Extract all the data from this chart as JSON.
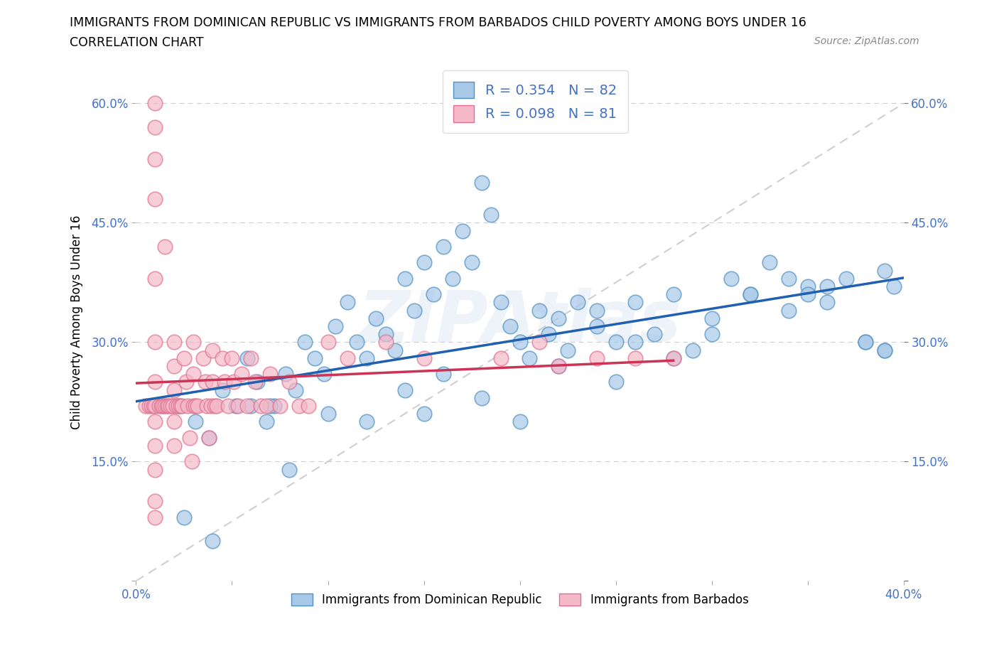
{
  "title_line1": "IMMIGRANTS FROM DOMINICAN REPUBLIC VS IMMIGRANTS FROM BARBADOS CHILD POVERTY AMONG BOYS UNDER 16",
  "title_line2": "CORRELATION CHART",
  "source_text": "Source: ZipAtlas.com",
  "ylabel": "Child Poverty Among Boys Under 16",
  "watermark": "ZIPAtlas",
  "legend_label1": "Immigrants from Dominican Republic",
  "legend_label2": "Immigrants from Barbados",
  "R1": 0.354,
  "N1": 82,
  "R2": 0.098,
  "N2": 81,
  "color1": "#a8c8e8",
  "color2": "#f4b8c8",
  "edge_color1": "#5090c0",
  "edge_color2": "#e07090",
  "line_color1": "#2060b0",
  "line_color2": "#cc3355",
  "diag_color": "#bbbbbb",
  "grid_color": "#cccccc",
  "tick_color": "#4472c4",
  "xlim": [
    0.0,
    0.4
  ],
  "ylim": [
    0.0,
    0.65
  ],
  "xticks": [
    0.0,
    0.05,
    0.1,
    0.15,
    0.2,
    0.25,
    0.3,
    0.35,
    0.4
  ],
  "yticks": [
    0.0,
    0.15,
    0.3,
    0.45,
    0.6
  ],
  "ytick_labels_left": [
    "",
    "15.0%",
    "30.0%",
    "45.0%",
    "60.0%"
  ],
  "ytick_labels_right": [
    "",
    "15.0%",
    "30.0%",
    "45.0%",
    "60.0%"
  ],
  "xtick_labels": [
    "0.0%",
    "",
    "",
    "",
    "",
    "",
    "",
    "",
    "40.0%"
  ],
  "figsize": [
    14.06,
    9.3
  ],
  "dpi": 100,
  "seed": 99,
  "blue_x": [
    0.022,
    0.031,
    0.038,
    0.045,
    0.052,
    0.058,
    0.063,
    0.068,
    0.072,
    0.078,
    0.083,
    0.088,
    0.093,
    0.098,
    0.104,
    0.11,
    0.115,
    0.12,
    0.125,
    0.13,
    0.135,
    0.14,
    0.145,
    0.15,
    0.155,
    0.16,
    0.165,
    0.17,
    0.175,
    0.18,
    0.185,
    0.19,
    0.195,
    0.2,
    0.205,
    0.21,
    0.215,
    0.22,
    0.225,
    0.23,
    0.24,
    0.25,
    0.26,
    0.27,
    0.28,
    0.29,
    0.3,
    0.31,
    0.32,
    0.33,
    0.34,
    0.35,
    0.36,
    0.37,
    0.38,
    0.39,
    0.04,
    0.06,
    0.08,
    0.1,
    0.12,
    0.14,
    0.16,
    0.18,
    0.2,
    0.22,
    0.24,
    0.26,
    0.28,
    0.3,
    0.32,
    0.34,
    0.36,
    0.38,
    0.39,
    0.395,
    0.025,
    0.07,
    0.15,
    0.25,
    0.35,
    0.39
  ],
  "blue_y": [
    0.22,
    0.2,
    0.18,
    0.24,
    0.22,
    0.28,
    0.25,
    0.2,
    0.22,
    0.26,
    0.24,
    0.3,
    0.28,
    0.26,
    0.32,
    0.35,
    0.3,
    0.28,
    0.33,
    0.31,
    0.29,
    0.38,
    0.34,
    0.4,
    0.36,
    0.42,
    0.38,
    0.44,
    0.4,
    0.5,
    0.46,
    0.35,
    0.32,
    0.3,
    0.28,
    0.34,
    0.31,
    0.33,
    0.29,
    0.35,
    0.32,
    0.3,
    0.35,
    0.31,
    0.36,
    0.29,
    0.33,
    0.38,
    0.36,
    0.4,
    0.38,
    0.37,
    0.35,
    0.38,
    0.3,
    0.29,
    0.05,
    0.22,
    0.14,
    0.21,
    0.2,
    0.24,
    0.26,
    0.23,
    0.2,
    0.27,
    0.34,
    0.3,
    0.28,
    0.31,
    0.36,
    0.34,
    0.37,
    0.3,
    0.29,
    0.37,
    0.08,
    0.22,
    0.21,
    0.25,
    0.36,
    0.39
  ],
  "pink_x": [
    0.005,
    0.007,
    0.008,
    0.009,
    0.01,
    0.01,
    0.01,
    0.01,
    0.01,
    0.01,
    0.01,
    0.01,
    0.01,
    0.01,
    0.01,
    0.01,
    0.01,
    0.012,
    0.013,
    0.014,
    0.015,
    0.015,
    0.016,
    0.017,
    0.018,
    0.019,
    0.02,
    0.02,
    0.02,
    0.02,
    0.02,
    0.021,
    0.022,
    0.023,
    0.024,
    0.025,
    0.026,
    0.027,
    0.028,
    0.029,
    0.03,
    0.03,
    0.03,
    0.031,
    0.032,
    0.035,
    0.036,
    0.037,
    0.038,
    0.039,
    0.04,
    0.04,
    0.041,
    0.042,
    0.045,
    0.046,
    0.048,
    0.05,
    0.051,
    0.053,
    0.055,
    0.058,
    0.06,
    0.062,
    0.065,
    0.068,
    0.07,
    0.075,
    0.08,
    0.085,
    0.09,
    0.1,
    0.11,
    0.13,
    0.15,
    0.19,
    0.21,
    0.22,
    0.24,
    0.26,
    0.28
  ],
  "pink_y": [
    0.22,
    0.22,
    0.22,
    0.22,
    0.6,
    0.57,
    0.53,
    0.48,
    0.38,
    0.3,
    0.25,
    0.22,
    0.2,
    0.17,
    0.14,
    0.1,
    0.08,
    0.22,
    0.22,
    0.22,
    0.42,
    0.22,
    0.22,
    0.22,
    0.22,
    0.22,
    0.3,
    0.27,
    0.24,
    0.2,
    0.17,
    0.22,
    0.22,
    0.22,
    0.22,
    0.28,
    0.25,
    0.22,
    0.18,
    0.15,
    0.3,
    0.26,
    0.22,
    0.22,
    0.22,
    0.28,
    0.25,
    0.22,
    0.18,
    0.22,
    0.29,
    0.25,
    0.22,
    0.22,
    0.28,
    0.25,
    0.22,
    0.28,
    0.25,
    0.22,
    0.26,
    0.22,
    0.28,
    0.25,
    0.22,
    0.22,
    0.26,
    0.22,
    0.25,
    0.22,
    0.22,
    0.3,
    0.28,
    0.3,
    0.28,
    0.28,
    0.3,
    0.27,
    0.28,
    0.28,
    0.28
  ]
}
